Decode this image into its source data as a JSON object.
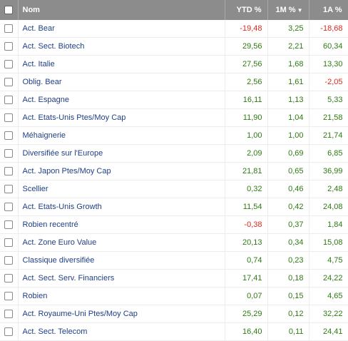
{
  "table": {
    "columns": [
      "Nom",
      "YTD %",
      "1M %",
      "1A %"
    ],
    "rows": [
      [
        "Act. Bear",
        "-19,48",
        "3,25",
        "-18,68"
      ],
      [
        "Act. Sect. Biotech",
        "29,56",
        "2,21",
        "60,34"
      ],
      [
        "Act. Italie",
        "27,56",
        "1,68",
        "13,30"
      ],
      [
        "Oblig. Bear",
        "2,56",
        "1,61",
        "-2,05"
      ],
      [
        "Act. Espagne",
        "16,11",
        "1,13",
        "5,33"
      ],
      [
        "Act. Etats-Unis Ptes/Moy Cap",
        "11,90",
        "1,04",
        "21,58"
      ],
      [
        "Méhaignerie",
        "1,00",
        "1,00",
        "21,74"
      ],
      [
        "Diversifiée sur l'Europe",
        "2,09",
        "0,69",
        "6,85"
      ],
      [
        "Act. Japon Ptes/Moy Cap",
        "21,81",
        "0,65",
        "36,99"
      ],
      [
        "Scellier",
        "0,32",
        "0,46",
        "2,48"
      ],
      [
        "Act. Etats-Unis Growth",
        "11,54",
        "0,42",
        "24,08"
      ],
      [
        "Robien recentré",
        "-0,38",
        "0,37",
        "1,84"
      ],
      [
        "Act. Zone Euro Value",
        "20,13",
        "0,34",
        "15,08"
      ],
      [
        "Classique diversifiée",
        "0,74",
        "0,23",
        "4,75"
      ],
      [
        "Act. Sect. Serv. Financiers",
        "17,41",
        "0,18",
        "24,22"
      ],
      [
        "Robien",
        "0,07",
        "0,15",
        "4,65"
      ],
      [
        "Act. Royaume-Uni Ptes/Moy Cap",
        "25,29",
        "0,12",
        "32,22"
      ],
      [
        "Act. Sect. Telecom",
        "16,40",
        "0,11",
        "24,41"
      ]
    ]
  }
}
